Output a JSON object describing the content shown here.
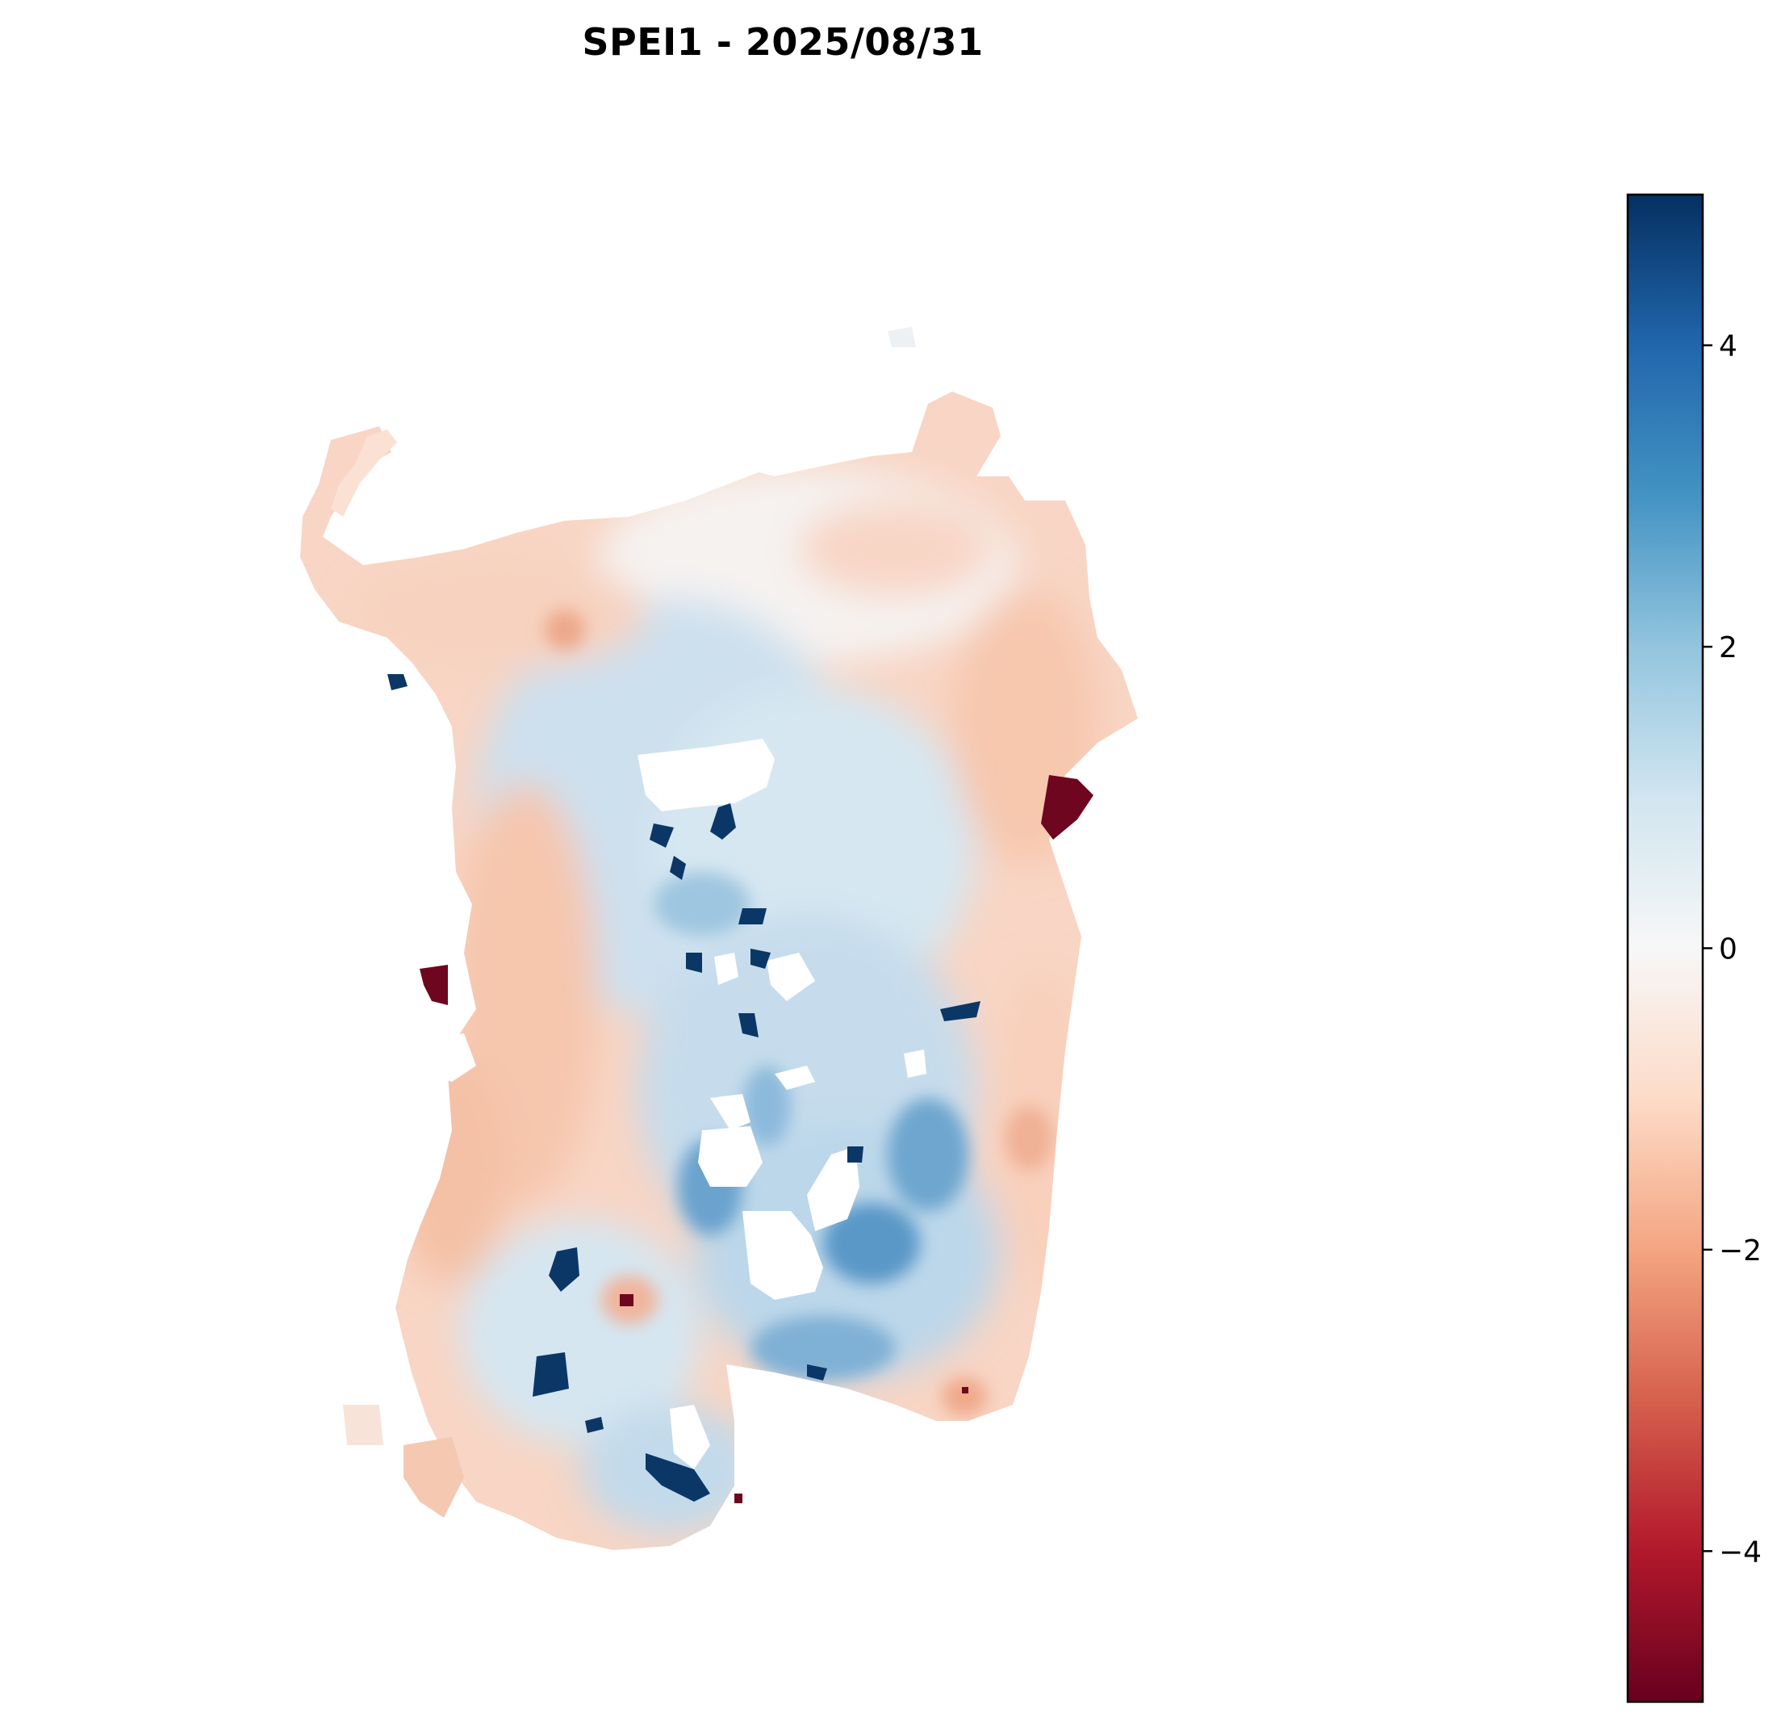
{
  "title": "SPEI1 - 2025/08/31",
  "colorbar": {
    "colormap": "RdBu",
    "vmin": -5,
    "vmax": 5,
    "ticks": [
      {
        "value": 4,
        "label": "4"
      },
      {
        "value": 2,
        "label": "2"
      },
      {
        "value": 0,
        "label": "0"
      },
      {
        "value": -2,
        "label": "−2"
      },
      {
        "value": -4,
        "label": "−4"
      }
    ],
    "stops": [
      "#67001f",
      "#b2182b",
      "#d6604d",
      "#f4a582",
      "#fddbc7",
      "#f7f7f7",
      "#d1e5f0",
      "#92c5de",
      "#4393c3",
      "#2166ac",
      "#053061"
    ]
  },
  "map": {
    "region_fill": "#f8d2bf",
    "wet_color": "#cfe2ef",
    "strong_wet_color": "#2f6fae",
    "extreme_wet_color": "#0b3766",
    "extreme_dry_color": "#6e0620",
    "nodata_color": "#ffffff"
  }
}
